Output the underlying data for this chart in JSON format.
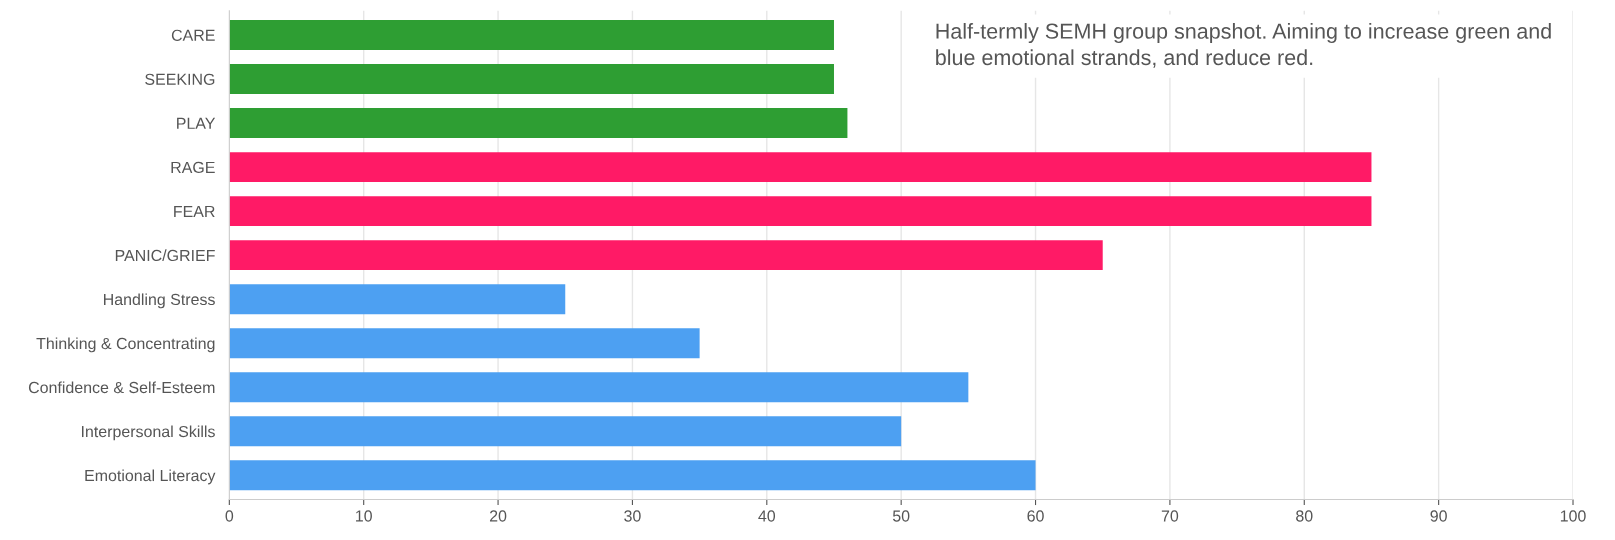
{
  "chart_data": {
    "type": "bar",
    "orientation": "horizontal",
    "categories": [
      "CARE",
      "SEEKING",
      "PLAY",
      "RAGE",
      "FEAR",
      "PANIC/GRIEF",
      "Handling Stress",
      "Thinking & Concentrating",
      "Confidence & Self-Esteem",
      "Interpersonal Skills",
      "Emotional Literacy"
    ],
    "values": [
      45,
      45,
      46,
      85,
      85,
      65,
      25,
      35,
      55,
      50,
      60
    ],
    "colors": [
      "#2e9e33",
      "#2e9e33",
      "#2e9e33",
      "#ff1a66",
      "#ff1a66",
      "#ff1a66",
      "#4da0f2",
      "#4da0f2",
      "#4da0f2",
      "#4da0f2",
      "#4da0f2"
    ],
    "xlim": [
      0,
      100
    ],
    "xticks": [
      0,
      10,
      20,
      30,
      40,
      50,
      60,
      70,
      80,
      90,
      100
    ],
    "grid": "x",
    "annotations": [
      "Half-termly SEMH group snapshot. Aiming to increase green and blue emotional strands, and reduce red."
    ]
  }
}
